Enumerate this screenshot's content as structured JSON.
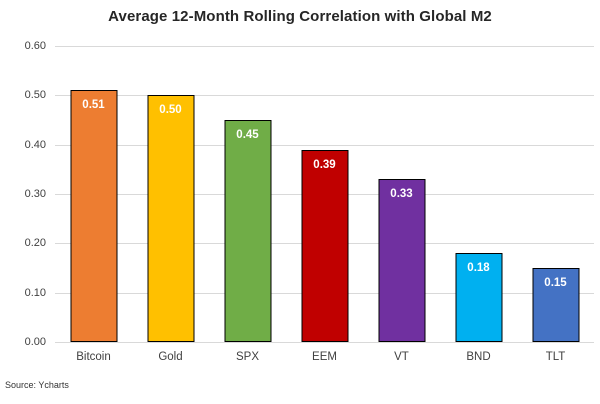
{
  "title": "Average 12-Month Rolling Correlation with Global M2",
  "source": "Source: Ycharts",
  "chart_data": {
    "type": "bar",
    "title": "Average 12-Month Rolling Correlation with Global M2",
    "categories": [
      "Bitcoin",
      "Gold",
      "SPX",
      "EEM",
      "VT",
      "BND",
      "TLT"
    ],
    "values": [
      0.51,
      0.5,
      0.45,
      0.39,
      0.33,
      0.18,
      0.15
    ],
    "data_labels": [
      "0.51",
      "0.50",
      "0.45",
      "0.39",
      "0.33",
      "0.18",
      "0.15"
    ],
    "bar_colors": [
      "#ED7D31",
      "#FFC000",
      "#70AD47",
      "#C00000",
      "#7030A0",
      "#00B0F0",
      "#4472C4"
    ],
    "bar_outline_color": "#000000",
    "data_label_color": "#FFFFFF",
    "xlabel": "",
    "ylabel": "",
    "ylim": [
      0,
      0.6
    ],
    "yticks": [
      "0.60",
      "0.50",
      "0.40",
      "0.30",
      "0.20",
      "0.10",
      "0.00"
    ],
    "grid": true,
    "gridline_color": "#D9D9D9",
    "legend_position": "none",
    "background_color": "#FFFFFF",
    "source_note": "Source: Ycharts"
  }
}
